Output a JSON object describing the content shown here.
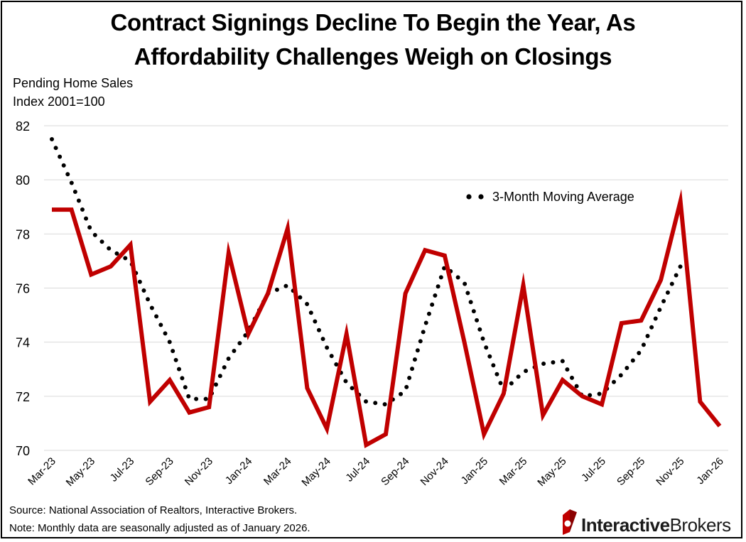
{
  "title_line1": "Contract Signings Decline To Begin the Year, As",
  "title_line2": "Affordability Challenges Weigh on Closings",
  "ylabel_line1": "Pending Home Sales",
  "ylabel_line2": "Index 2001=100",
  "source": "Source: National Association of Realtors, Interactive Brokers.",
  "note": "Note: Monthly data are seasonally adjusted as of January 2026.",
  "logo": {
    "part1": "Interactive",
    "part2": "Brokers",
    "icon": "interactive-brokers-logo-icon"
  },
  "colors": {
    "series": "#c00000",
    "moving_average": "#000000",
    "grid": "#d9d9d9"
  },
  "chart_data": {
    "type": "line",
    "title": "Contract Signings Decline To Begin the Year, As Affordability Challenges Weigh on Closings",
    "ylabel": "Pending Home Sales Index 2001=100",
    "xlabel": "",
    "ylim": [
      70,
      82
    ],
    "yticks": [
      70,
      72,
      74,
      76,
      78,
      80,
      82
    ],
    "grid": "horizontal",
    "legend_position": "top-right",
    "x": [
      "Mar-23",
      "Apr-23",
      "May-23",
      "Jun-23",
      "Jul-23",
      "Aug-23",
      "Sep-23",
      "Oct-23",
      "Nov-23",
      "Dec-23",
      "Jan-24",
      "Feb-24",
      "Mar-24",
      "Apr-24",
      "May-24",
      "Jun-24",
      "Jul-24",
      "Aug-24",
      "Sep-24",
      "Oct-24",
      "Nov-24",
      "Dec-24",
      "Jan-25",
      "Feb-25",
      "Mar-25",
      "Apr-25",
      "May-25",
      "Jun-25",
      "Jul-25",
      "Aug-25",
      "Sep-25",
      "Oct-25",
      "Nov-25",
      "Dec-25",
      "Jan-26"
    ],
    "xtick_labels": [
      "Mar-23",
      "May-23",
      "Jul-23",
      "Sep-23",
      "Nov-23",
      "Jan-24",
      "Mar-24",
      "May-24",
      "Jul-24",
      "Sep-24",
      "Nov-24",
      "Jan-25",
      "Mar-25",
      "May-25",
      "Jul-25",
      "Sep-25",
      "Nov-25",
      "Jan-26"
    ],
    "series": [
      {
        "values": [
          78.9,
          78.9,
          76.5,
          76.8,
          77.6,
          71.8,
          72.6,
          71.4,
          71.6,
          77.3,
          74.3,
          75.8,
          78.2,
          72.3,
          70.8,
          74.3,
          70.2,
          70.6,
          75.8,
          77.4,
          77.2,
          74.0,
          70.6,
          72.1,
          76.1,
          71.3,
          72.6,
          72.0,
          71.7,
          74.7,
          74.8,
          76.3,
          79.2,
          71.8,
          70.9
        ]
      },
      {
        "name": "3-Month Moving Average",
        "values": [
          81.5,
          79.9,
          78.1,
          77.4,
          77.0,
          75.4,
          74.0,
          71.9,
          71.9,
          73.4,
          74.4,
          75.8,
          76.1,
          75.4,
          73.8,
          72.5,
          71.8,
          71.7,
          72.2,
          74.6,
          76.8,
          76.2,
          74.0,
          72.2,
          72.9,
          73.2,
          73.3,
          72.0,
          72.1,
          72.8,
          73.7,
          75.3,
          76.8,
          null,
          null
        ]
      }
    ]
  }
}
